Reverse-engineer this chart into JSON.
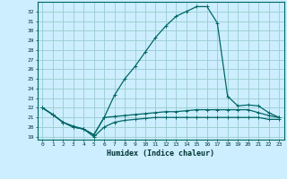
{
  "title": "",
  "xlabel": "Humidex (Indice chaleur)",
  "bg_color": "#cceeff",
  "grid_color": "#99cccc",
  "line_color": "#006666",
  "xlim": [
    -0.5,
    23.5
  ],
  "ylim": [
    18.7,
    33.0
  ],
  "xticks": [
    0,
    1,
    2,
    3,
    4,
    5,
    6,
    7,
    8,
    9,
    10,
    11,
    12,
    13,
    14,
    15,
    16,
    17,
    18,
    19,
    20,
    21,
    22,
    23
  ],
  "yticks": [
    19,
    20,
    21,
    22,
    23,
    24,
    25,
    26,
    27,
    28,
    29,
    30,
    31,
    32
  ],
  "line1_x": [
    0,
    1,
    2,
    3,
    4,
    5,
    6,
    7,
    8,
    9,
    10,
    11,
    12,
    13,
    14,
    15,
    16,
    17,
    18,
    19,
    20,
    21,
    22,
    23
  ],
  "line1_y": [
    22.0,
    21.3,
    20.5,
    20.0,
    19.8,
    19.2,
    21.0,
    23.3,
    25.0,
    26.3,
    27.8,
    29.3,
    30.5,
    31.5,
    32.0,
    32.5,
    32.5,
    30.8,
    23.2,
    22.2,
    22.3,
    22.2,
    21.5,
    21.0
  ],
  "line2_x": [
    0,
    1,
    2,
    3,
    4,
    5,
    6,
    7,
    8,
    9,
    10,
    11,
    12,
    13,
    14,
    15,
    16,
    17,
    18,
    19,
    20,
    21,
    22,
    23
  ],
  "line2_y": [
    22.0,
    21.3,
    20.5,
    20.0,
    19.8,
    19.2,
    21.0,
    21.1,
    21.2,
    21.3,
    21.4,
    21.5,
    21.6,
    21.6,
    21.7,
    21.8,
    21.8,
    21.8,
    21.8,
    21.8,
    21.8,
    21.5,
    21.2,
    21.0
  ],
  "line3_x": [
    0,
    1,
    2,
    3,
    4,
    5,
    6,
    7,
    8,
    9,
    10,
    11,
    12,
    13,
    14,
    15,
    16,
    17,
    18,
    19,
    20,
    21,
    22,
    23
  ],
  "line3_y": [
    22.0,
    21.3,
    20.5,
    20.1,
    19.8,
    19.0,
    20.0,
    20.5,
    20.7,
    20.8,
    20.9,
    21.0,
    21.0,
    21.0,
    21.0,
    21.0,
    21.0,
    21.0,
    21.0,
    21.0,
    21.0,
    21.0,
    20.8,
    20.8
  ]
}
